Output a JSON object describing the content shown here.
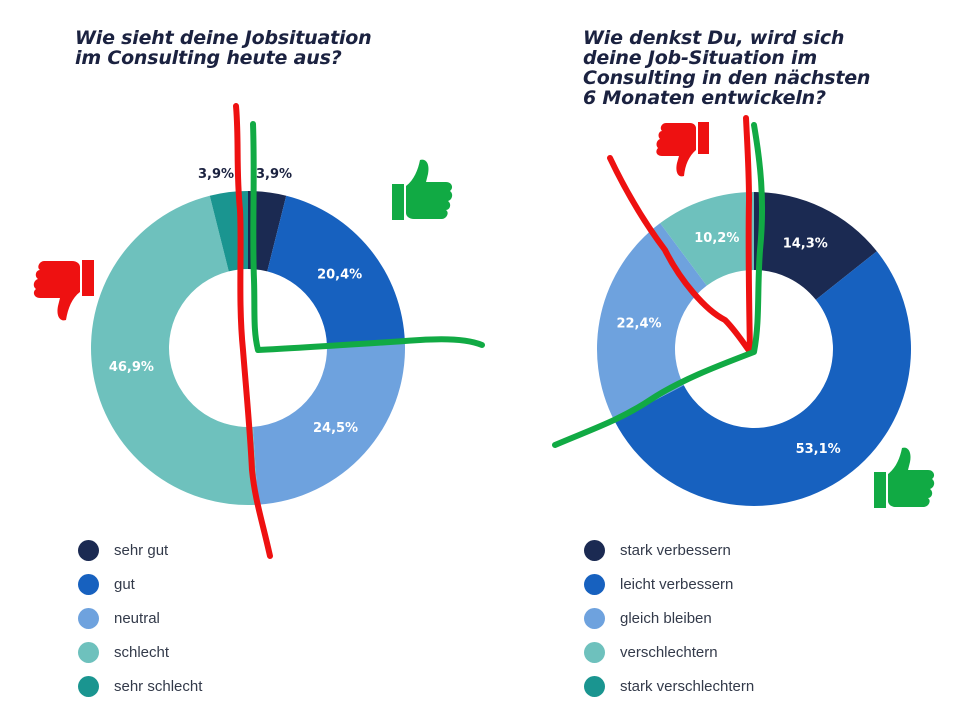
{
  "colors": {
    "sehr_gut": "#1b2a52",
    "gut": "#1761bf",
    "neutral": "#6ea2de",
    "schlecht": "#6ec1bd",
    "sehr_schlecht": "#1a9590",
    "red_annotation": "#ee1111",
    "green_annotation": "#11aa44"
  },
  "icons": [
    "thumbs-up-icon",
    "thumbs-down-icon"
  ],
  "chart_data": [
    {
      "type": "pie",
      "donut": true,
      "title": "Wie sieht deine Jobsituation\nim Consulting heute aus?",
      "categories": [
        "sehr gut",
        "gut",
        "neutral",
        "schlecht",
        "sehr schlecht"
      ],
      "values": [
        3.9,
        20.4,
        24.5,
        46.9,
        3.9
      ],
      "value_labels": [
        "3,9%",
        "20,4%",
        "24,5%",
        "46,9%",
        "3,9%"
      ],
      "colors": [
        "#1b2a52",
        "#1761bf",
        "#6ea2de",
        "#6ec1bd",
        "#1a9590"
      ],
      "legend": "bottom-left"
    },
    {
      "type": "pie",
      "donut": true,
      "title": "Wie denkst Du, wird sich\ndeine Job-Situation im\nConsulting in den nächsten\n6 Monaten entwickeln?",
      "categories": [
        "stark verbessern",
        "leicht verbessern",
        "gleich bleiben",
        "verschlechtern",
        "stark verschlechtern"
      ],
      "values": [
        14.3,
        53.1,
        22.4,
        10.2,
        0
      ],
      "value_labels": [
        "14,3%",
        "53,1%",
        "22,4%",
        "10,2%",
        ""
      ],
      "colors": [
        "#1b2a52",
        "#1761bf",
        "#6ea2de",
        "#6ec1bd",
        "#1a9590"
      ],
      "legend": "bottom-left"
    }
  ]
}
